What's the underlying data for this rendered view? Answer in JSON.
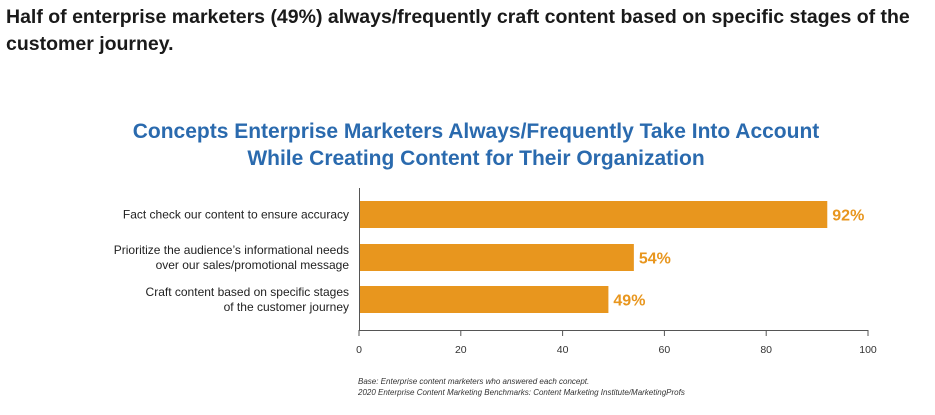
{
  "headline": "Half of enterprise marketers (49%) always/frequently craft content based on specific stages of the customer journey.",
  "chart_data": {
    "type": "bar",
    "orientation": "horizontal",
    "title_lines": [
      "Concepts Enterprise Marketers Always/Frequently Take Into Account",
      "While Creating Content for Their Organization"
    ],
    "categories": [
      [
        "Fact check our content to ensure accuracy"
      ],
      [
        "Prioritize the audience’s informational needs",
        "over our sales/promotional message"
      ],
      [
        "Craft content based on specific stages",
        "of the customer journey"
      ]
    ],
    "values": [
      92,
      54,
      49
    ],
    "value_labels": [
      "92%",
      "54%",
      "49%"
    ],
    "xlim": [
      0,
      100
    ],
    "xticks": [
      0,
      20,
      40,
      60,
      80,
      100
    ],
    "xtick_labels": [
      "0",
      "20",
      "40",
      "60",
      "80",
      "100"
    ],
    "grid": false,
    "colors": {
      "bar": "#e8961e",
      "value_label": "#e8961e",
      "title": "#2a6aae"
    }
  },
  "footnotes": {
    "base": "Base: Enterprise content marketers who answered each concept.",
    "source": "2020 Enterprise Content Marketing Benchmarks: Content Marketing Institute/MarketingProfs"
  }
}
